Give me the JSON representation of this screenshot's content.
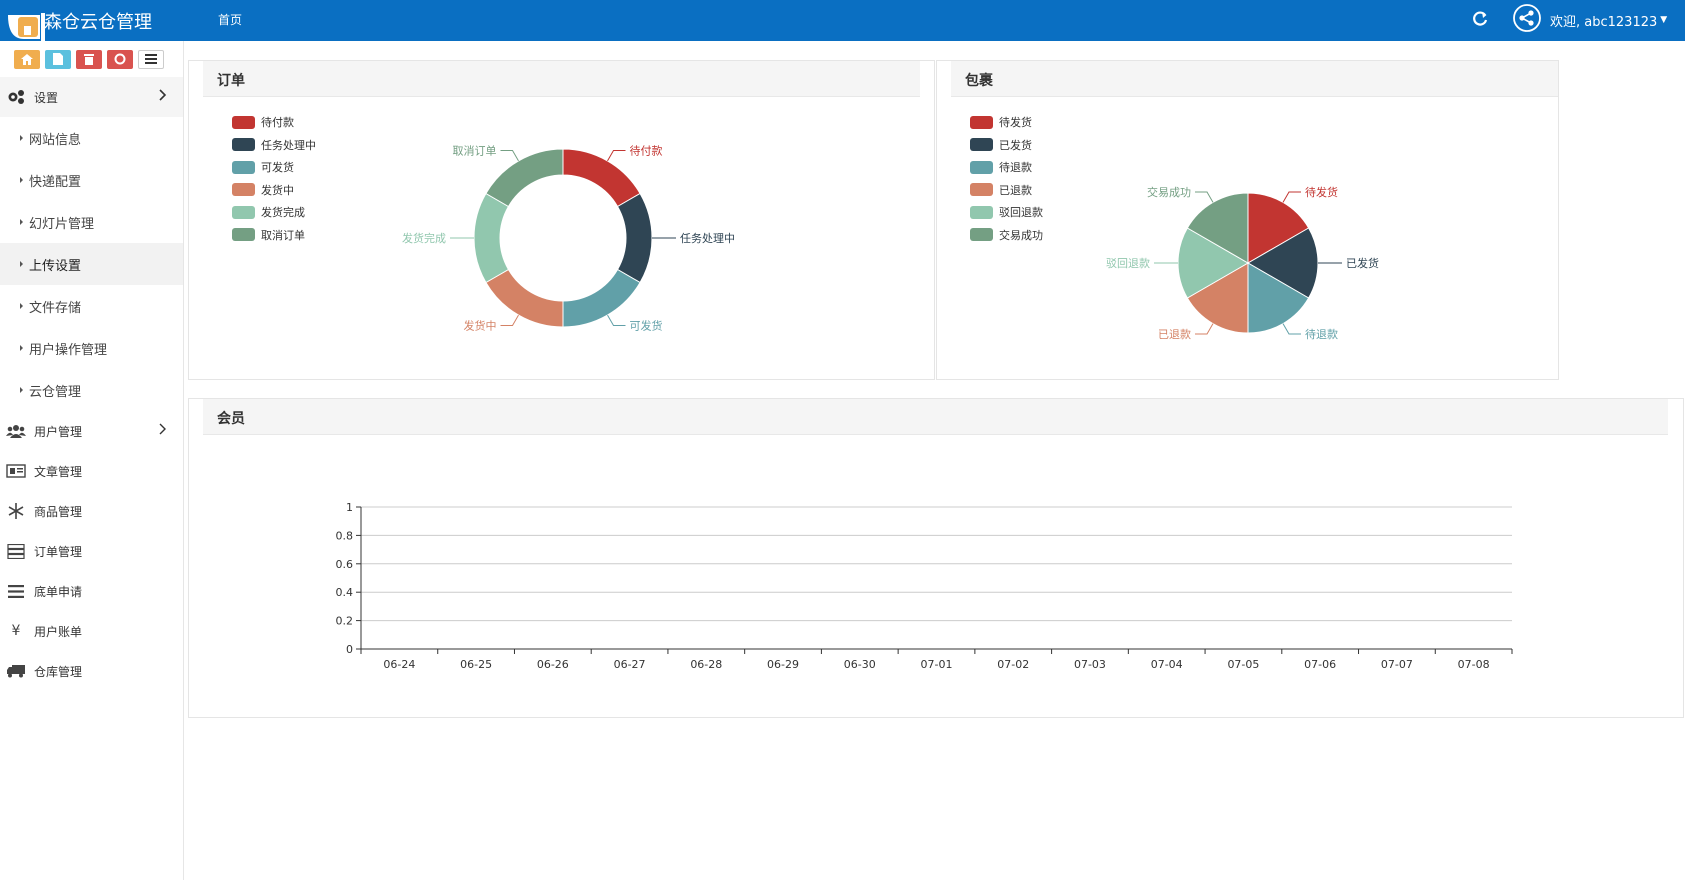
{
  "header": {
    "title": "森仓云仓管理",
    "nav_home": "首页",
    "user_text": "欢迎, abc123123"
  },
  "colors": {
    "topbar": "#0a6fc2",
    "c1": "#c23531",
    "c2": "#2f4554",
    "c3": "#61a0a8",
    "c4": "#d48265",
    "c5": "#91c7ae",
    "c6": "#749f83"
  },
  "sidebar": {
    "settings": "设置",
    "sub_items": [
      "网站信息",
      "快递配置",
      "幻灯片管理",
      "上传设置",
      "文件存储",
      "用户操作管理",
      "云仓管理"
    ],
    "items": [
      {
        "label": "用户管理",
        "icon": "users-icon"
      },
      {
        "label": "文章管理",
        "icon": "newspaper-icon"
      },
      {
        "label": "商品管理",
        "icon": "snowflake-icon"
      },
      {
        "label": "订单管理",
        "icon": "server-icon"
      },
      {
        "label": "底单申请",
        "icon": "bars-icon"
      },
      {
        "label": "用户账单",
        "icon": "yen-icon"
      },
      {
        "label": "仓库管理",
        "icon": "truck-icon"
      }
    ]
  },
  "panels": {
    "orders": "订单",
    "packages": "包裹",
    "members": "会员"
  },
  "chart_data": [
    {
      "type": "pie",
      "variant": "donut",
      "title": "订单",
      "legend_position": "top-left",
      "labels": [
        "待付款",
        "任务处理中",
        "可发货",
        "发货中",
        "发货完成",
        "取消订单"
      ],
      "values": [
        1,
        1,
        1,
        1,
        1,
        1
      ]
    },
    {
      "type": "pie",
      "title": "包裹",
      "legend_position": "top-left",
      "labels": [
        "待发货",
        "已发货",
        "待退款",
        "已退款",
        "驳回退款",
        "交易成功"
      ],
      "values": [
        1,
        1,
        1,
        1,
        1,
        1
      ]
    },
    {
      "type": "line",
      "title": "会员",
      "categories": [
        "06-24",
        "06-25",
        "06-26",
        "06-27",
        "06-28",
        "06-29",
        "06-30",
        "07-01",
        "07-02",
        "07-03",
        "07-04",
        "07-05",
        "07-06",
        "07-07",
        "07-08"
      ],
      "y_ticks": [
        "0",
        "0.2",
        "0.4",
        "0.6",
        "0.8",
        "1"
      ],
      "ylim": [
        0,
        1
      ],
      "grid": true,
      "series": []
    }
  ]
}
